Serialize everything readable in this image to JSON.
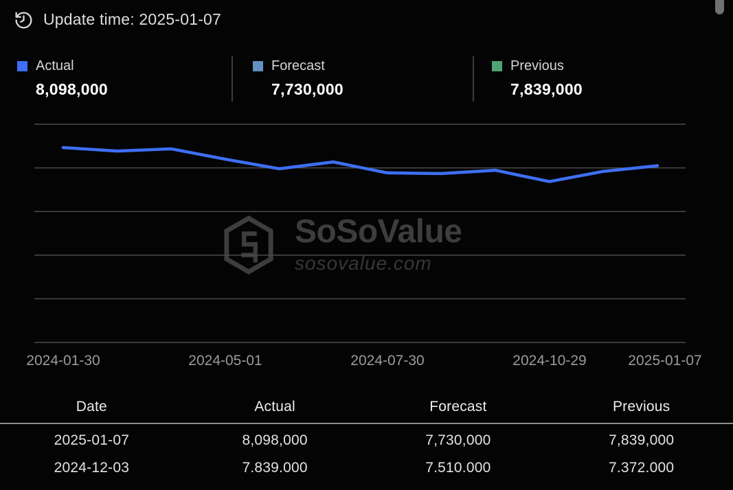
{
  "header": {
    "update_time": "Update time: 2025-01-07"
  },
  "legend": {
    "items": [
      {
        "label": "Actual",
        "value": "8,098,000",
        "color": "#3e6ff4"
      },
      {
        "label": "Forecast",
        "value": "7,730,000",
        "color": "#6290c1"
      },
      {
        "label": "Previous",
        "value": "7,839,000",
        "color": "#4da475"
      }
    ]
  },
  "watermark": {
    "brand": "SoSoValue",
    "domain": "sosovalue.com"
  },
  "chart_data": {
    "type": "line",
    "title": "",
    "xlabel": "",
    "ylabel": "",
    "ylim": [
      0,
      10000000
    ],
    "y_gridline_values": [
      0,
      2000000,
      4000000,
      6000000,
      8000000,
      10000000
    ],
    "y_ticks_labeled": false,
    "grid": "horizontal",
    "legend_position": "top",
    "x_tick_labels": [
      "2024-01-30",
      "2024-05-01",
      "2024-07-30",
      "2024-10-29",
      "2025-01-07"
    ],
    "x_tick_point_indices": [
      0,
      3,
      6,
      9,
      11
    ],
    "series": [
      {
        "name": "Actual",
        "color": "#3e6ff4",
        "values": [
          8930000,
          8770000,
          8870000,
          8400000,
          7960000,
          8270000,
          7770000,
          7740000,
          7890000,
          7372000,
          7839000,
          8098000
        ]
      }
    ]
  },
  "table": {
    "headers": [
      "Date",
      "Actual",
      "Forecast",
      "Previous"
    ],
    "rows": [
      [
        "2025-01-07",
        "8,098,000",
        "7,730,000",
        "7,839,000"
      ],
      [
        "2024-12-03",
        "7.839.000",
        "7.510.000",
        "7.372.000"
      ]
    ]
  }
}
